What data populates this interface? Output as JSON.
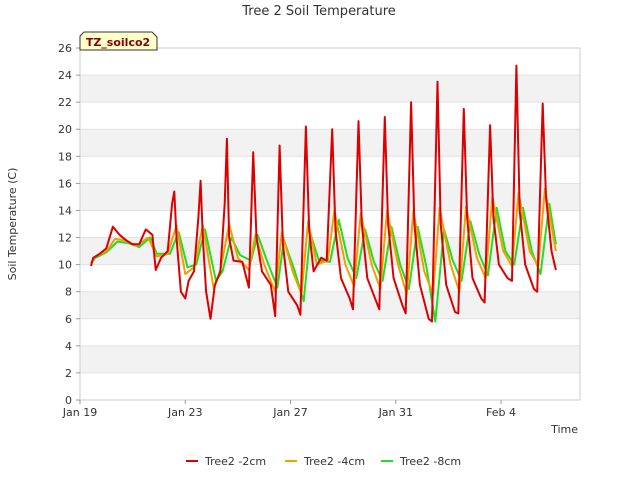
{
  "chart_data": {
    "type": "line",
    "title": "Tree 2 Soil Temperature",
    "xlabel": "Time",
    "ylabel": "Soil Temperature (C)",
    "badge": "TZ_soilco2",
    "ylim": [
      0,
      26
    ],
    "yticks": [
      0,
      2,
      4,
      6,
      8,
      10,
      12,
      14,
      16,
      18,
      20,
      22,
      24,
      26
    ],
    "xlim": [
      "2022-01-19",
      "2022-02-07"
    ],
    "xticks": [
      {
        "date": "2022-01-19",
        "label": "Jan 19"
      },
      {
        "date": "2022-01-23",
        "label": "Jan 23"
      },
      {
        "date": "2022-01-27",
        "label": "Jan 27"
      },
      {
        "date": "2022-01-31",
        "label": "Jan 31"
      },
      {
        "date": "2022-02-04",
        "label": "Feb 4"
      }
    ],
    "grid": true,
    "legend_position": "bottom",
    "series": [
      {
        "name": "Tree2 -2cm",
        "color": "#dd0000",
        "points": [
          [
            "2022-01-19 10:00",
            9.9
          ],
          [
            "2022-01-19 12:00",
            10.5
          ],
          [
            "2022-01-19 18:00",
            10.8
          ],
          [
            "2022-01-20 00:00",
            11.2
          ],
          [
            "2022-01-20 06:00",
            12.8
          ],
          [
            "2022-01-20 12:00",
            12.2
          ],
          [
            "2022-01-20 18:00",
            11.8
          ],
          [
            "2022-01-21 00:00",
            11.5
          ],
          [
            "2022-01-21 06:00",
            11.5
          ],
          [
            "2022-01-21 12:00",
            12.6
          ],
          [
            "2022-01-21 18:00",
            12.2
          ],
          [
            "2022-01-21 21:00",
            9.6
          ],
          [
            "2022-01-22 02:00",
            10.5
          ],
          [
            "2022-01-22 08:00",
            11.0
          ],
          [
            "2022-01-22 12:00",
            14.5
          ],
          [
            "2022-01-22 14:00",
            15.4
          ],
          [
            "2022-01-22 16:00",
            12.0
          ],
          [
            "2022-01-22 20:00",
            8.0
          ],
          [
            "2022-01-23 00:00",
            7.5
          ],
          [
            "2022-01-23 03:00",
            8.8
          ],
          [
            "2022-01-23 08:00",
            9.5
          ],
          [
            "2022-01-23 12:00",
            13.5
          ],
          [
            "2022-01-23 14:00",
            16.2
          ],
          [
            "2022-01-23 16:00",
            12.0
          ],
          [
            "2022-01-23 19:00",
            8.0
          ],
          [
            "2022-01-23 23:00",
            6.0
          ],
          [
            "2022-01-24 03:00",
            8.5
          ],
          [
            "2022-01-24 08:00",
            9.5
          ],
          [
            "2022-01-24 12:00",
            14.5
          ],
          [
            "2022-01-24 14:00",
            19.3
          ],
          [
            "2022-01-24 16:00",
            12.0
          ],
          [
            "2022-01-24 20:00",
            10.3
          ],
          [
            "2022-01-25 04:00",
            10.2
          ],
          [
            "2022-01-25 10:00",
            8.3
          ],
          [
            "2022-01-25 14:00",
            18.3
          ],
          [
            "2022-01-25 17:00",
            12.0
          ],
          [
            "2022-01-25 22:00",
            9.5
          ],
          [
            "2022-01-26 06:00",
            8.5
          ],
          [
            "2022-01-26 10:00",
            6.2
          ],
          [
            "2022-01-26 14:00",
            18.8
          ],
          [
            "2022-01-26 17:00",
            11.5
          ],
          [
            "2022-01-26 22:00",
            8.0
          ],
          [
            "2022-01-27 06:00",
            7.0
          ],
          [
            "2022-01-27 09:00",
            6.3
          ],
          [
            "2022-01-27 14:00",
            20.2
          ],
          [
            "2022-01-27 17:00",
            12.5
          ],
          [
            "2022-01-27 21:00",
            9.5
          ],
          [
            "2022-01-28 04:00",
            10.5
          ],
          [
            "2022-01-28 09:00",
            10.3
          ],
          [
            "2022-01-28 14:00",
            20.0
          ],
          [
            "2022-01-28 17:00",
            12.5
          ],
          [
            "2022-01-28 22:00",
            9.0
          ],
          [
            "2022-01-29 06:00",
            7.5
          ],
          [
            "2022-01-29 09:00",
            6.7
          ],
          [
            "2022-01-29 14:00",
            20.6
          ],
          [
            "2022-01-29 17:00",
            13.0
          ],
          [
            "2022-01-29 22:00",
            9.0
          ],
          [
            "2022-01-30 06:00",
            7.3
          ],
          [
            "2022-01-30 09:00",
            6.7
          ],
          [
            "2022-01-30 14:00",
            20.9
          ],
          [
            "2022-01-30 17:00",
            13.0
          ],
          [
            "2022-01-30 22:00",
            9.0
          ],
          [
            "2022-01-31 06:00",
            7.0
          ],
          [
            "2022-01-31 09:00",
            6.4
          ],
          [
            "2022-01-31 14:00",
            22.0
          ],
          [
            "2022-01-31 17:00",
            13.0
          ],
          [
            "2022-01-31 22:00",
            8.5
          ],
          [
            "2022-02-01 06:00",
            6.0
          ],
          [
            "2022-02-01 09:00",
            5.8
          ],
          [
            "2022-02-01 14:00",
            23.5
          ],
          [
            "2022-02-01 17:00",
            13.0
          ],
          [
            "2022-02-01 22:00",
            8.5
          ],
          [
            "2022-02-02 06:00",
            6.5
          ],
          [
            "2022-02-02 09:00",
            6.4
          ],
          [
            "2022-02-02 14:00",
            21.5
          ],
          [
            "2022-02-02 17:00",
            13.5
          ],
          [
            "2022-02-02 22:00",
            9.0
          ],
          [
            "2022-02-03 06:00",
            7.5
          ],
          [
            "2022-02-03 09:00",
            7.2
          ],
          [
            "2022-02-03 14:00",
            20.3
          ],
          [
            "2022-02-03 17:00",
            13.5
          ],
          [
            "2022-02-03 22:00",
            10.0
          ],
          [
            "2022-02-04 06:00",
            9.0
          ],
          [
            "2022-02-04 10:00",
            8.8
          ],
          [
            "2022-02-04 14:00",
            24.7
          ],
          [
            "2022-02-04 17:00",
            14.0
          ],
          [
            "2022-02-04 22:00",
            10.0
          ],
          [
            "2022-02-05 06:00",
            8.2
          ],
          [
            "2022-02-05 09:00",
            8.0
          ],
          [
            "2022-02-05 14:00",
            21.9
          ],
          [
            "2022-02-05 17:00",
            15.0
          ],
          [
            "2022-02-05 22:00",
            11.0
          ],
          [
            "2022-02-06 02:00",
            9.6
          ]
        ]
      },
      {
        "name": "Tree2 -4cm",
        "color": "#f0a000",
        "points": [
          [
            "2022-01-19 10:00",
            10.1
          ],
          [
            "2022-01-19 14:00",
            10.6
          ],
          [
            "2022-01-20 00:00",
            11.0
          ],
          [
            "2022-01-20 08:00",
            11.9
          ],
          [
            "2022-01-20 16:00",
            11.8
          ],
          [
            "2022-01-21 04:00",
            11.4
          ],
          [
            "2022-01-21 14:00",
            12.0
          ],
          [
            "2022-01-21 22:00",
            10.6
          ],
          [
            "2022-01-22 08:00",
            10.8
          ],
          [
            "2022-01-22 16:00",
            12.9
          ],
          [
            "2022-01-23 00:00",
            9.3
          ],
          [
            "2022-01-23 08:00",
            9.8
          ],
          [
            "2022-01-23 16:00",
            12.9
          ],
          [
            "2022-01-24 02:00",
            8.2
          ],
          [
            "2022-01-24 08:00",
            9.6
          ],
          [
            "2022-01-24 16:00",
            13.0
          ],
          [
            "2022-01-25 00:00",
            10.5
          ],
          [
            "2022-01-25 10:00",
            9.6
          ],
          [
            "2022-01-25 16:00",
            12.2
          ],
          [
            "2022-01-26 00:00",
            10.0
          ],
          [
            "2022-01-26 10:00",
            8.0
          ],
          [
            "2022-01-26 16:00",
            12.4
          ],
          [
            "2022-01-27 02:00",
            9.5
          ],
          [
            "2022-01-27 10:00",
            7.8
          ],
          [
            "2022-01-27 16:00",
            13.2
          ],
          [
            "2022-01-28 00:00",
            10.0
          ],
          [
            "2022-01-28 10:00",
            10.3
          ],
          [
            "2022-01-28 16:00",
            14.0
          ],
          [
            "2022-01-29 02:00",
            10.0
          ],
          [
            "2022-01-29 10:00",
            8.4
          ],
          [
            "2022-01-29 16:00",
            13.8
          ],
          [
            "2022-01-30 02:00",
            10.0
          ],
          [
            "2022-01-30 10:00",
            8.2
          ],
          [
            "2022-01-30 16:00",
            14.0
          ],
          [
            "2022-01-31 02:00",
            10.0
          ],
          [
            "2022-01-31 10:00",
            7.8
          ],
          [
            "2022-01-31 16:00",
            14.0
          ],
          [
            "2022-02-01 02:00",
            9.5
          ],
          [
            "2022-02-01 10:00",
            7.8
          ],
          [
            "2022-02-01 16:00",
            14.2
          ],
          [
            "2022-02-02 02:00",
            10.0
          ],
          [
            "2022-02-02 10:00",
            8.0
          ],
          [
            "2022-02-02 16:00",
            14.3
          ],
          [
            "2022-02-03 02:00",
            10.5
          ],
          [
            "2022-02-03 10:00",
            9.0
          ],
          [
            "2022-02-03 16:00",
            15.0
          ],
          [
            "2022-02-04 02:00",
            11.0
          ],
          [
            "2022-02-04 10:00",
            9.9
          ],
          [
            "2022-02-04 16:00",
            15.3
          ],
          [
            "2022-02-05 02:00",
            11.0
          ],
          [
            "2022-02-05 10:00",
            9.9
          ],
          [
            "2022-02-05 16:00",
            15.6
          ],
          [
            "2022-02-06 02:00",
            11.0
          ]
        ]
      },
      {
        "name": "Tree2 -8cm",
        "color": "#22dd22",
        "points": [
          [
            "2022-01-19 10:00",
            10.1
          ],
          [
            "2022-01-19 14:00",
            10.5
          ],
          [
            "2022-01-20 00:00",
            10.9
          ],
          [
            "2022-01-20 10:00",
            11.7
          ],
          [
            "2022-01-20 20:00",
            11.6
          ],
          [
            "2022-01-21 06:00",
            11.3
          ],
          [
            "2022-01-21 16:00",
            12.0
          ],
          [
            "2022-01-21 22:00",
            10.8
          ],
          [
            "2022-01-22 10:00",
            10.8
          ],
          [
            "2022-01-22 18:00",
            12.4
          ],
          [
            "2022-01-23 02:00",
            9.8
          ],
          [
            "2022-01-23 10:00",
            10.0
          ],
          [
            "2022-01-23 18:00",
            12.6
          ],
          [
            "2022-01-24 04:00",
            8.8
          ],
          [
            "2022-01-24 10:00",
            9.5
          ],
          [
            "2022-01-24 18:00",
            12.0
          ],
          [
            "2022-01-25 02:00",
            10.7
          ],
          [
            "2022-01-25 12:00",
            10.3
          ],
          [
            "2022-01-25 18:00",
            12.2
          ],
          [
            "2022-01-26 02:00",
            10.4
          ],
          [
            "2022-01-26 12:00",
            8.3
          ],
          [
            "2022-01-26 18:00",
            11.8
          ],
          [
            "2022-01-27 04:00",
            9.5
          ],
          [
            "2022-01-27 12:00",
            7.3
          ],
          [
            "2022-01-27 18:00",
            12.3
          ],
          [
            "2022-01-28 02:00",
            10.3
          ],
          [
            "2022-01-28 12:00",
            10.2
          ],
          [
            "2022-01-28 20:00",
            13.3
          ],
          [
            "2022-01-29 04:00",
            10.5
          ],
          [
            "2022-01-29 12:00",
            9.0
          ],
          [
            "2022-01-29 20:00",
            12.6
          ],
          [
            "2022-01-30 04:00",
            10.2
          ],
          [
            "2022-01-30 12:00",
            8.8
          ],
          [
            "2022-01-30 20:00",
            12.8
          ],
          [
            "2022-01-31 04:00",
            10.0
          ],
          [
            "2022-01-31 12:00",
            8.2
          ],
          [
            "2022-01-31 20:00",
            12.8
          ],
          [
            "2022-02-01 04:00",
            9.8
          ],
          [
            "2022-02-01 12:00",
            5.8
          ],
          [
            "2022-02-01 20:00",
            12.6
          ],
          [
            "2022-02-02 04:00",
            10.3
          ],
          [
            "2022-02-02 12:00",
            8.8
          ],
          [
            "2022-02-02 20:00",
            13.2
          ],
          [
            "2022-02-03 04:00",
            10.8
          ],
          [
            "2022-02-03 12:00",
            9.2
          ],
          [
            "2022-02-03 20:00",
            14.2
          ],
          [
            "2022-02-04 04:00",
            11.0
          ],
          [
            "2022-02-04 12:00",
            10.0
          ],
          [
            "2022-02-04 20:00",
            14.2
          ],
          [
            "2022-02-05 04:00",
            11.0
          ],
          [
            "2022-02-05 12:00",
            9.3
          ],
          [
            "2022-02-05 20:00",
            14.5
          ],
          [
            "2022-02-06 02:00",
            11.5
          ]
        ]
      }
    ]
  }
}
